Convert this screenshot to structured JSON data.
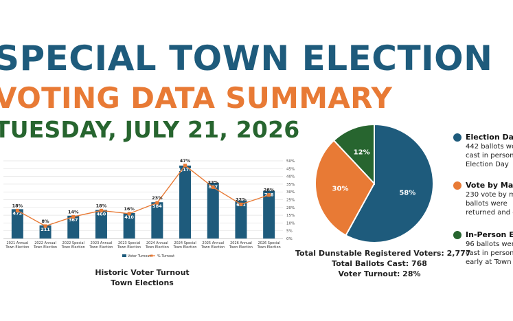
{
  "headline": {
    "line1": "SPECIAL TOWN ELECTION",
    "line2": "VOTING DATA SUMMARY",
    "line3": "TUESDAY, JULY 21, 2026"
  },
  "colors": {
    "navy": "#1e5b7c",
    "orange": "#e87a35",
    "green": "#27652f"
  },
  "chart_data": [
    {
      "type": "bar",
      "title": "",
      "caption": [
        "Historic Voter Turnout",
        "Town Elections"
      ],
      "categories": [
        "2021 Annual Town Election",
        "2022 Annual Town Election",
        "2022 Special Town Election",
        "2023 Annual Town Election",
        "2023 Special Town Election",
        "2024 Annual Town Election",
        "2024 Special Town Election",
        "2025 Annual Town Election",
        "2026 Annual Town Election",
        "2026 Special Town Election"
      ],
      "series": [
        {
          "name": "Voter Turnout",
          "kind": "bar",
          "axis": "left",
          "values": [
            472,
            211,
            367,
            460,
            410,
            584,
            1174,
            897,
            611,
            768
          ],
          "labels": [
            "472",
            "211",
            "367",
            "460",
            "410",
            "584",
            "1,174",
            "897",
            "611",
            "768"
          ]
        },
        {
          "name": "% Turnout",
          "kind": "line",
          "axis": "right",
          "values": [
            18,
            8,
            14,
            18,
            16,
            23,
            47,
            33,
            22,
            28
          ],
          "labels": [
            "18%",
            "8%",
            "14%",
            "18%",
            "16%",
            "23%",
            "47%",
            "33%",
            "22%",
            "28%"
          ]
        }
      ],
      "ylim_left": [
        0,
        1250
      ],
      "ylim_right": [
        0,
        50
      ],
      "right_ticks": [
        "0%",
        "5%",
        "10%",
        "15%",
        "20%",
        "25%",
        "30%",
        "35%",
        "40%",
        "45%",
        "50%"
      ],
      "legend": "bottom",
      "grid": true
    },
    {
      "type": "pie",
      "slices": [
        {
          "name": "Election Day",
          "value": 58,
          "label": "58%",
          "color": "#1e5b7c"
        },
        {
          "name": "Vote by Mail",
          "value": 30,
          "label": "30%",
          "color": "#e87a35"
        },
        {
          "name": "In-Person Ea",
          "value": 12,
          "label": "12%",
          "color": "#27652f"
        }
      ]
    }
  ],
  "pie_stats": [
    "Total Dunstable Registered Voters: 2,777",
    "Total Ballots Cast: 768",
    "Voter Turnout: 28%"
  ],
  "pie_legend": [
    {
      "title": "Election Day",
      "desc": "442 ballots were cast in person Election Day",
      "color": "#1e5b7c"
    },
    {
      "title": "Vote by Mail",
      "desc": "230 vote by mail ballots were returned and c",
      "color": "#e87a35"
    },
    {
      "title": "In-Person Ea",
      "desc": "96 ballots were cast in person early at Town H",
      "color": "#27652f"
    }
  ]
}
